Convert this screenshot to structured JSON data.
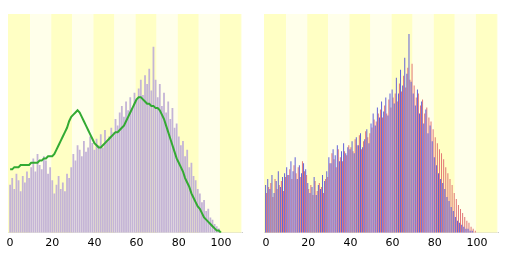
{
  "chart_data": [
    {
      "type": "bar",
      "x": [
        0,
        1,
        2,
        3,
        4,
        5,
        6,
        7,
        8,
        9,
        10,
        11,
        12,
        13,
        14,
        15,
        16,
        17,
        18,
        19,
        20,
        21,
        22,
        23,
        24,
        25,
        26,
        27,
        28,
        29,
        30,
        31,
        32,
        33,
        34,
        35,
        36,
        37,
        38,
        39,
        40,
        41,
        42,
        43,
        44,
        45,
        46,
        47,
        48,
        49,
        50,
        51,
        52,
        53,
        54,
        55,
        56,
        57,
        58,
        59,
        60,
        61,
        62,
        63,
        64,
        65,
        66,
        67,
        68,
        69,
        70,
        71,
        72,
        73,
        74,
        75,
        76,
        77,
        78,
        79,
        80,
        81,
        82,
        83,
        84,
        85,
        86,
        87,
        88,
        89,
        90,
        91,
        92,
        93,
        94,
        95,
        96,
        97,
        98,
        99,
        100
      ],
      "xlim": [
        -1,
        110
      ],
      "xticks": [
        0,
        20,
        40,
        60,
        80,
        100
      ],
      "ylim": [
        0,
        100
      ],
      "tick_labels": "x",
      "grid": false,
      "series": [
        {
          "type": "bar",
          "color": "#c4b4d6",
          "values": [
            22,
            25,
            20,
            27,
            24,
            19,
            26,
            23,
            28,
            25,
            30,
            34,
            28,
            36,
            31,
            29,
            35,
            33,
            27,
            30,
            24,
            18,
            22,
            26,
            20,
            23,
            19,
            27,
            25,
            30,
            36,
            33,
            40,
            38,
            35,
            42,
            37,
            39,
            44,
            41,
            38,
            43,
            40,
            45,
            39,
            47,
            42,
            44,
            48,
            46,
            52,
            49,
            55,
            58,
            53,
            60,
            56,
            62,
            57,
            64,
            61,
            66,
            70,
            63,
            72,
            68,
            75,
            65,
            85,
            70,
            62,
            68,
            58,
            64,
            55,
            60,
            52,
            57,
            48,
            50,
            44,
            40,
            42,
            35,
            38,
            30,
            32,
            26,
            24,
            20,
            18,
            14,
            15,
            10,
            11,
            7,
            6,
            4,
            3,
            2,
            0
          ]
        },
        {
          "type": "line",
          "color": "#33aa33",
          "values": [
            29,
            29,
            30,
            30,
            30,
            31,
            31,
            31,
            31,
            31,
            32,
            32,
            32,
            32,
            33,
            33,
            34,
            34,
            35,
            35,
            35,
            36,
            38,
            40,
            42,
            44,
            46,
            48,
            51,
            53,
            54,
            55,
            56,
            55,
            53,
            51,
            49,
            47,
            45,
            43,
            41,
            40,
            39,
            39,
            40,
            41,
            42,
            43,
            44,
            45,
            46,
            46,
            47,
            48,
            49,
            51,
            53,
            55,
            57,
            59,
            61,
            62,
            62,
            61,
            60,
            59,
            59,
            58,
            58,
            57,
            57,
            56,
            54,
            52,
            49,
            46,
            43,
            40,
            37,
            34,
            32,
            30,
            28,
            25,
            23,
            21,
            18,
            16,
            14,
            12,
            11,
            9,
            7,
            6,
            5,
            4,
            3,
            2,
            1,
            1,
            0
          ]
        }
      ]
    },
    {
      "type": "bar",
      "x": [
        0,
        1,
        2,
        3,
        4,
        5,
        6,
        7,
        8,
        9,
        10,
        11,
        12,
        13,
        14,
        15,
        16,
        17,
        18,
        19,
        20,
        21,
        22,
        23,
        24,
        25,
        26,
        27,
        28,
        29,
        30,
        31,
        32,
        33,
        34,
        35,
        36,
        37,
        38,
        39,
        40,
        41,
        42,
        43,
        44,
        45,
        46,
        47,
        48,
        49,
        50,
        51,
        52,
        53,
        54,
        55,
        56,
        57,
        58,
        59,
        60,
        61,
        62,
        63,
        64,
        65,
        66,
        67,
        68,
        69,
        70,
        71,
        72,
        73,
        74,
        75,
        76,
        77,
        78,
        79,
        80,
        81,
        82,
        83,
        84,
        85,
        86,
        87,
        88,
        89,
        90,
        91,
        92,
        93,
        94,
        95,
        96,
        97,
        98,
        99,
        100
      ],
      "xlim": [
        -1,
        110
      ],
      "xticks": [
        0,
        20,
        40,
        60,
        80,
        100
      ],
      "ylim": [
        0,
        110
      ],
      "tick_labels": "x",
      "grid": false,
      "series": [
        {
          "type": "bar",
          "color": "#5a5ad8",
          "values": [
            24,
            27,
            22,
            29,
            20,
            26,
            31,
            23,
            28,
            30,
            33,
            29,
            36,
            31,
            38,
            27,
            34,
            30,
            35,
            32,
            25,
            20,
            23,
            28,
            19,
            24,
            22,
            29,
            26,
            31,
            38,
            35,
            42,
            39,
            44,
            36,
            41,
            45,
            40,
            43,
            42,
            46,
            40,
            48,
            44,
            50,
            43,
            47,
            52,
            45,
            55,
            60,
            54,
            63,
            58,
            66,
            61,
            68,
            59,
            70,
            72,
            65,
            78,
            70,
            82,
            74,
            88,
            80,
            100,
            76,
            70,
            64,
            72,
            60,
            66,
            55,
            62,
            50,
            54,
            46,
            38,
            34,
            30,
            27,
            25,
            22,
            18,
            16,
            13,
            11,
            8,
            6,
            5,
            4,
            3,
            2,
            2,
            1,
            1,
            0,
            0
          ]
        },
        {
          "type": "bar",
          "color": "#e07070",
          "values": [
            20,
            23,
            25,
            18,
            27,
            22,
            24,
            26,
            21,
            28,
            29,
            32,
            27,
            34,
            30,
            33,
            28,
            36,
            31,
            29,
            22,
            24,
            19,
            26,
            21,
            25,
            23,
            20,
            27,
            28,
            35,
            40,
            37,
            33,
            42,
            38,
            36,
            41,
            39,
            44,
            43,
            41,
            47,
            44,
            49,
            42,
            46,
            51,
            48,
            50,
            53,
            57,
            56,
            60,
            62,
            58,
            64,
            60,
            67,
            63,
            68,
            70,
            66,
            75,
            71,
            79,
            73,
            83,
            77,
            85,
            74,
            68,
            70,
            64,
            67,
            60,
            63,
            58,
            56,
            52,
            48,
            45,
            42,
            40,
            37,
            33,
            30,
            27,
            24,
            20,
            17,
            14,
            12,
            10,
            8,
            6,
            5,
            3,
            2,
            1,
            0
          ]
        }
      ]
    }
  ]
}
